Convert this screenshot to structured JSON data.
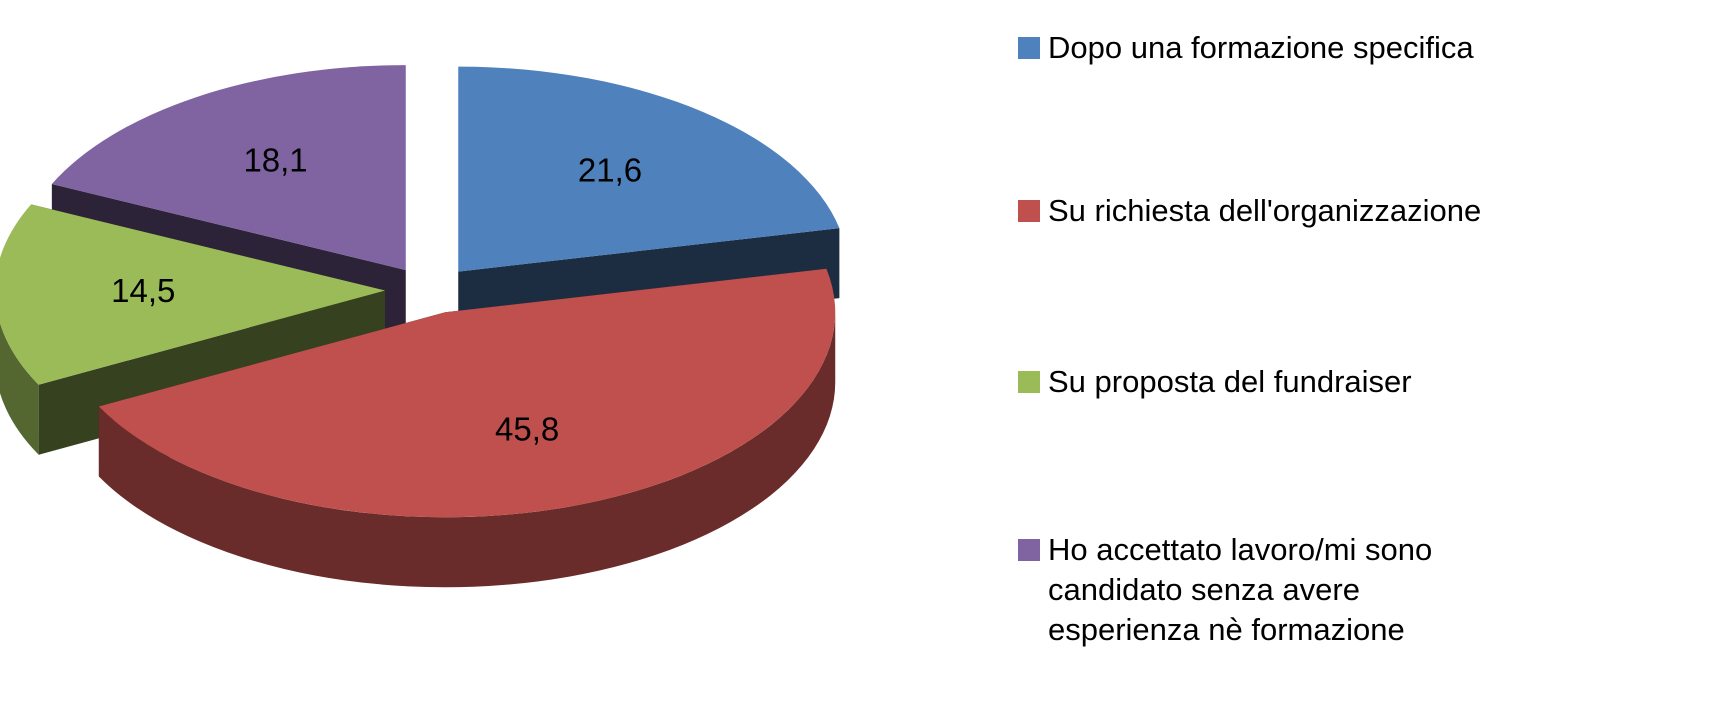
{
  "chart_data": {
    "type": "pie",
    "three_d": true,
    "exploded": true,
    "categories": [
      "Dopo una formazione specifica",
      "Su richiesta dell'organizzazione",
      "Su proposta del fundraiser",
      "Ho accettato lavoro/mi sono candidato senza avere esperienza nè formazione"
    ],
    "values": [
      21.6,
      45.8,
      14.5,
      18.1
    ],
    "value_labels": [
      "21,6",
      "45,8",
      "14,5",
      "18,1"
    ],
    "colors": [
      "#4f81bd",
      "#c0504d",
      "#9bbb59",
      "#8064a2"
    ],
    "legend": "right"
  }
}
